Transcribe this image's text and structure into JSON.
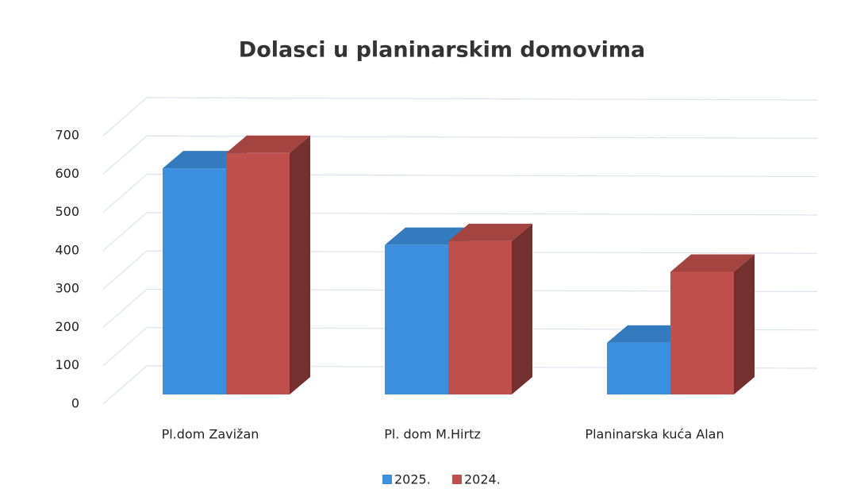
{
  "chart_data": {
    "type": "bar3d",
    "title": "Dolasci u planinarskim domovima",
    "categories": [
      "Pl.dom Zavižan",
      "Pl. dom M.Hirtz",
      "Planinarska kuća Alan"
    ],
    "series": [
      {
        "name": "2025.",
        "color": "#3d8fe0",
        "values": [
          590,
          390,
          135
        ]
      },
      {
        "name": "2024.",
        "color": "#c0504d",
        "values": [
          630,
          400,
          320
        ]
      }
    ],
    "ylim": [
      0,
      700
    ],
    "yticks": [
      0,
      100,
      200,
      300,
      400,
      500,
      600,
      700
    ],
    "grid": true,
    "legend": "bottom"
  }
}
